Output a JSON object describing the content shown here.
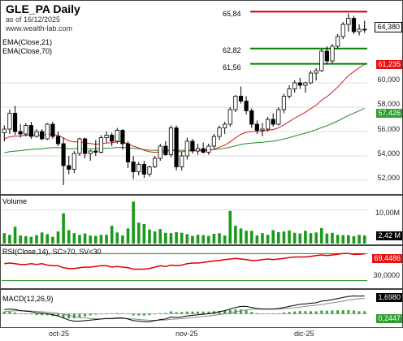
{
  "header": {
    "title": "GLE_PA Daily",
    "date": "as of 16/12/2025",
    "source": "www.wealth-lab.com"
  },
  "price_pane": {
    "ema21_label": "EMA(Close,21)",
    "ema70_label": "EMA(Close,70)",
    "levels": [
      {
        "label": "65,84",
        "value": 65.84,
        "color": "#cc0000"
      },
      {
        "label": "62,82",
        "value": 62.82,
        "color": "#008000"
      },
      {
        "label": "61,56",
        "value": 61.56,
        "color": "#008000"
      }
    ],
    "y_ticks": [
      "60,000",
      "58,000",
      "56,000",
      "54,000",
      "52,000"
    ],
    "tags": {
      "last": {
        "label": "64,380",
        "color": "#ffffff",
        "bg": "#ffffff"
      },
      "ema21": {
        "label": "61,235",
        "color": "#ffffff",
        "bg": "#e81010"
      },
      "ema70": {
        "label": "57,426",
        "color": "#ffffff",
        "bg": "#2e9e2e"
      }
    },
    "colors": {
      "up": "#ffffff",
      "down": "#000000",
      "ema21": "#d81818",
      "ema70": "#1e8a1e"
    }
  },
  "volume_pane": {
    "label": "Volume",
    "y_tick": "10,00M",
    "tag": {
      "label": "2,42 M",
      "bg": "#000000"
    },
    "color": "#1a9a1a"
  },
  "rsi_pane": {
    "label": "RSI(Close,14), SC>70, SV<30",
    "upper_tick": "30,0000",
    "tag": {
      "label": "69,4486",
      "bg": "#e81010"
    },
    "color": "#e00000"
  },
  "macd_pane": {
    "label": "MACD(12,26,9)",
    "tags": {
      "macd": {
        "label": "1,6980",
        "bg": "#000000"
      },
      "hist": {
        "label": "0,2447",
        "bg": "#2e9e2e"
      }
    }
  },
  "x_axis": {
    "ticks": [
      "oct-25",
      "nov-25",
      "dic-25"
    ]
  },
  "chart_data": {
    "type": "candlestick",
    "title": "GLE_PA Daily",
    "ylim": [
      51,
      66.6
    ],
    "candles": [
      [
        55.9,
        56.5,
        55.2,
        56.2
      ],
      [
        56.2,
        57.8,
        55.8,
        57.5
      ],
      [
        57.5,
        58.1,
        55.7,
        56.0
      ],
      [
        56.0,
        56.6,
        55.5,
        55.8
      ],
      [
        55.8,
        56.7,
        55.6,
        56.5
      ],
      [
        56.5,
        56.8,
        55.4,
        55.6
      ],
      [
        55.6,
        56.2,
        55.5,
        56.0
      ],
      [
        56.0,
        56.2,
        55.3,
        55.4
      ],
      [
        55.4,
        56.7,
        55.3,
        56.6
      ],
      [
        56.6,
        56.8,
        55.4,
        55.6
      ],
      [
        55.6,
        56.0,
        54.8,
        55.0
      ],
      [
        55.0,
        55.5,
        51.6,
        53.2
      ],
      [
        53.2,
        54.0,
        52.5,
        52.9
      ],
      [
        52.9,
        54.4,
        52.6,
        54.2
      ],
      [
        54.2,
        55.5,
        54.0,
        55.4
      ],
      [
        55.4,
        55.5,
        53.8,
        54.2
      ],
      [
        54.2,
        54.5,
        53.6,
        54.4
      ],
      [
        54.4,
        55.3,
        54.0,
        54.3
      ],
      [
        54.3,
        55.7,
        54.2,
        55.5
      ],
      [
        55.5,
        56.0,
        55.1,
        55.7
      ],
      [
        55.7,
        55.9,
        54.8,
        55.2
      ],
      [
        55.2,
        56.3,
        55.0,
        56.1
      ],
      [
        56.1,
        56.2,
        54.5,
        55.0
      ],
      [
        55.0,
        55.2,
        53.0,
        53.5
      ],
      [
        53.5,
        54.0,
        52.1,
        52.7
      ],
      [
        52.7,
        53.5,
        52.4,
        53.3
      ],
      [
        53.3,
        53.6,
        52.2,
        52.5
      ],
      [
        52.5,
        53.2,
        52.3,
        53.1
      ],
      [
        53.1,
        54.0,
        53.0,
        53.8
      ],
      [
        53.8,
        55.0,
        53.6,
        54.8
      ],
      [
        54.8,
        55.2,
        54.0,
        54.1
      ],
      [
        54.1,
        56.5,
        53.9,
        56.3
      ],
      [
        56.3,
        56.5,
        52.8,
        53.1
      ],
      [
        53.1,
        54.3,
        52.8,
        54.0
      ],
      [
        54.0,
        55.5,
        53.7,
        55.2
      ],
      [
        55.2,
        55.4,
        54.2,
        54.4
      ],
      [
        54.4,
        55.0,
        54.1,
        54.6
      ],
      [
        54.6,
        55.1,
        54.2,
        54.3
      ],
      [
        54.3,
        55.0,
        54.1,
        54.8
      ],
      [
        54.8,
        55.8,
        54.6,
        55.6
      ],
      [
        55.6,
        56.5,
        55.3,
        56.3
      ],
      [
        56.3,
        56.8,
        55.8,
        56.6
      ],
      [
        56.6,
        58.0,
        56.4,
        57.8
      ],
      [
        57.8,
        59.0,
        57.6,
        58.9
      ],
      [
        58.9,
        59.7,
        58.3,
        58.5
      ],
      [
        58.5,
        58.9,
        57.4,
        57.7
      ],
      [
        57.7,
        57.9,
        56.3,
        56.6
      ],
      [
        56.6,
        56.9,
        55.8,
        56.1
      ],
      [
        56.1,
        56.7,
        55.6,
        56.2
      ],
      [
        56.2,
        57.2,
        56.0,
        57.0
      ],
      [
        57.0,
        57.5,
        56.4,
        56.6
      ],
      [
        56.6,
        58.0,
        56.5,
        57.8
      ],
      [
        57.8,
        59.1,
        57.5,
        58.9
      ],
      [
        58.9,
        59.8,
        58.7,
        59.5
      ],
      [
        59.5,
        60.2,
        59.2,
        60.0
      ],
      [
        60.0,
        60.4,
        59.5,
        59.8
      ],
      [
        59.8,
        60.1,
        59.2,
        60.0
      ],
      [
        60.0,
        61.0,
        59.9,
        60.8
      ],
      [
        60.8,
        61.2,
        60.2,
        61.0
      ],
      [
        61.0,
        62.8,
        60.9,
        62.6
      ],
      [
        62.6,
        63.0,
        61.5,
        61.8
      ],
      [
        61.8,
        63.2,
        61.6,
        63.0
      ],
      [
        63.0,
        64.0,
        62.8,
        63.8
      ],
      [
        63.8,
        65.0,
        63.6,
        64.8
      ],
      [
        64.8,
        65.7,
        64.2,
        65.3
      ],
      [
        65.3,
        65.5,
        64.0,
        64.2
      ],
      [
        64.2,
        64.8,
        63.9,
        64.4
      ],
      [
        64.4,
        65.1,
        64.1,
        64.38
      ]
    ],
    "volume_millions": [
      3.1,
      2.6,
      5.0,
      2.4,
      2.2,
      2.0,
      2.5,
      3.3,
      2.8,
      2.0,
      3.6,
      9.0,
      4.0,
      3.1,
      2.6,
      3.0,
      2.4,
      2.3,
      2.6,
      2.6,
      5.3,
      3.3,
      2.4,
      4.5,
      12.5,
      6.2,
      5.8,
      4.2,
      3.6,
      4.3,
      3.2,
      3.1,
      3.4,
      3.2,
      2.8,
      2.3,
      2.6,
      2.5,
      2.3,
      2.9,
      3.1,
      2.4,
      9.7,
      5.3,
      4.5,
      3.8,
      3.8,
      2.4,
      3.1,
      2.6,
      4.0,
      3.4,
      3.6,
      3.9,
      3.2,
      3.0,
      3.8,
      3.1,
      3.3,
      4.6,
      3.0,
      3.2,
      2.6,
      2.5,
      2.5,
      2.2,
      2.6,
      2.42
    ],
    "rsi": [
      55,
      56,
      55,
      54,
      54,
      55,
      54,
      55,
      53,
      52,
      52,
      49,
      48,
      48,
      49,
      50,
      50,
      51,
      52,
      52,
      50,
      51,
      50,
      49,
      47,
      47,
      47,
      48,
      50,
      52,
      51,
      53,
      52,
      53,
      55,
      56,
      56,
      57,
      58,
      59,
      60,
      61,
      62,
      63,
      62,
      61,
      60,
      60,
      61,
      62,
      61,
      62,
      63,
      64,
      65,
      65,
      65,
      66,
      67,
      68,
      67,
      68,
      69,
      70,
      70,
      69,
      69,
      69.45
    ],
    "macd_line": [
      0.4,
      0.45,
      0.4,
      0.3,
      0.25,
      0.2,
      0.1,
      0.05,
      0.0,
      -0.1,
      -0.2,
      -0.4,
      -0.6,
      -0.7,
      -0.7,
      -0.65,
      -0.6,
      -0.55,
      -0.5,
      -0.45,
      -0.45,
      -0.4,
      -0.4,
      -0.5,
      -0.65,
      -0.7,
      -0.75,
      -0.75,
      -0.65,
      -0.55,
      -0.5,
      -0.3,
      -0.35,
      -0.3,
      -0.2,
      -0.15,
      -0.1,
      -0.05,
      0.0,
      0.1,
      0.2,
      0.3,
      0.45,
      0.6,
      0.7,
      0.7,
      0.6,
      0.5,
      0.45,
      0.45,
      0.45,
      0.5,
      0.6,
      0.7,
      0.8,
      0.9,
      0.95,
      1.0,
      1.05,
      1.2,
      1.25,
      1.35,
      1.45,
      1.55,
      1.65,
      1.7,
      1.68,
      1.698
    ],
    "macd_signal": [
      0.2,
      0.25,
      0.28,
      0.29,
      0.28,
      0.26,
      0.23,
      0.19,
      0.15,
      0.1,
      0.04,
      -0.05,
      -0.16,
      -0.27,
      -0.35,
      -0.41,
      -0.45,
      -0.47,
      -0.48,
      -0.47,
      -0.47,
      -0.46,
      -0.45,
      -0.46,
      -0.5,
      -0.54,
      -0.58,
      -0.62,
      -0.62,
      -0.61,
      -0.59,
      -0.53,
      -0.5,
      -0.46,
      -0.41,
      -0.36,
      -0.31,
      -0.26,
      -0.21,
      -0.15,
      -0.08,
      0.0,
      0.09,
      0.19,
      0.29,
      0.37,
      0.42,
      0.44,
      0.44,
      0.44,
      0.44,
      0.45,
      0.48,
      0.52,
      0.58,
      0.64,
      0.7,
      0.76,
      0.82,
      0.89,
      0.96,
      1.04,
      1.12,
      1.21,
      1.3,
      1.38,
      1.44,
      1.45
    ]
  }
}
